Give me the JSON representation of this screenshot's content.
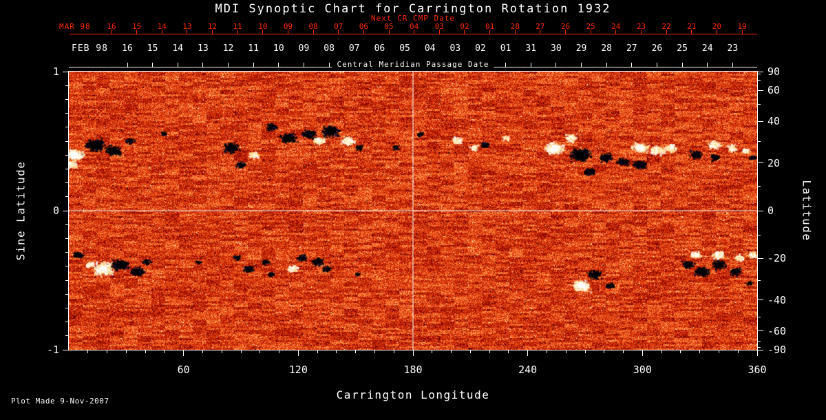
{
  "title": "MDI Synoptic Chart for Carrington Rotation 1932",
  "plot_made": "Plot Made  9-Nov-2007",
  "chart_data": {
    "type": "heatmap",
    "title": "MDI Synoptic Chart for Carrington Rotation 1932",
    "xlabel": "Carrington Longitude",
    "ylabel_left": "Sine Latitude",
    "ylabel_right": "Latitude",
    "xlim": [
      0,
      360
    ],
    "ylim_sine_latitude": [
      -1,
      1
    ],
    "x_major_ticks": [
      60,
      120,
      180,
      240,
      300,
      360
    ],
    "x_minor_step": 10,
    "left_ticks": [
      {
        "value": 1,
        "label": "1"
      },
      {
        "value": 0,
        "label": "0"
      },
      {
        "value": -1,
        "label": "-1"
      }
    ],
    "left_minor_step": 0.1,
    "right_ticks": [
      {
        "value": 90,
        "label": "90"
      },
      {
        "value": 60,
        "label": "60"
      },
      {
        "value": 40,
        "label": "40"
      },
      {
        "value": 20,
        "label": "20"
      },
      {
        "value": 0,
        "label": "0"
      },
      {
        "value": -20,
        "label": "-20"
      },
      {
        "value": -40,
        "label": "-40"
      },
      {
        "value": -60,
        "label": "-60"
      },
      {
        "value": -90,
        "label": "-90"
      }
    ],
    "right_minor_step": 10,
    "grid_lines": {
      "longitude": [
        180
      ],
      "sine_latitude": [
        0
      ]
    },
    "top_axis_red": {
      "label": "Next CR CMP Date",
      "month": "MAR 98",
      "color": "#ff2b00",
      "days": [
        "16",
        "15",
        "14",
        "13",
        "12",
        "11",
        "10",
        "09",
        "08",
        "07",
        "06",
        "05",
        "04",
        "03",
        "02",
        "01",
        "28",
        "27",
        "26",
        "25",
        "24",
        "23",
        "22",
        "21",
        "20",
        "19"
      ],
      "first_tick_frac": 0.062,
      "spacing_frac": 0.03664
    },
    "top_axis_white": {
      "label": "Central Meridian Passage Date",
      "month": "FEB 98",
      "color": "#ffffff",
      "days": [
        "16",
        "15",
        "14",
        "13",
        "12",
        "11",
        "10",
        "09",
        "08",
        "07",
        "06",
        "05",
        "04",
        "03",
        "02",
        "01",
        "31",
        "30",
        "29",
        "28",
        "27",
        "26",
        "25",
        "24",
        "23"
      ],
      "first_tick_frac": 0.085,
      "spacing_frac": 0.03664
    },
    "colormap": [
      [
        0.0,
        "#000000"
      ],
      [
        0.22,
        "#7a0000"
      ],
      [
        0.45,
        "#cc2200"
      ],
      [
        0.62,
        "#f4551e"
      ],
      [
        0.78,
        "#ff9140"
      ],
      [
        0.9,
        "#ffd27a"
      ],
      [
        1.0,
        "#ffffe8"
      ]
    ],
    "noise": {
      "base": 0.52,
      "fine_amp": 0.46,
      "block_amp": 0.13,
      "seed": 1932
    },
    "active_regions": [
      [
        3,
        0.4,
        10,
        "p"
      ],
      [
        1,
        0.33,
        7,
        "p"
      ],
      [
        14,
        0.47,
        11,
        "n"
      ],
      [
        23,
        0.43,
        9,
        "n"
      ],
      [
        32,
        0.5,
        5,
        "n"
      ],
      [
        50,
        0.55,
        4,
        "n"
      ],
      [
        85,
        0.45,
        9,
        "n"
      ],
      [
        90,
        0.33,
        6,
        "n"
      ],
      [
        97,
        0.4,
        6,
        "p"
      ],
      [
        106,
        0.6,
        7,
        "n"
      ],
      [
        115,
        0.52,
        9,
        "n"
      ],
      [
        126,
        0.55,
        8,
        "n"
      ],
      [
        131,
        0.5,
        7,
        "p"
      ],
      [
        137,
        0.57,
        10,
        "n"
      ],
      [
        146,
        0.5,
        8,
        "p"
      ],
      [
        152,
        0.45,
        5,
        "n"
      ],
      [
        171,
        0.45,
        4,
        "n"
      ],
      [
        184,
        0.55,
        4,
        "n"
      ],
      [
        203,
        0.5,
        6,
        "p"
      ],
      [
        212,
        0.45,
        5,
        "p"
      ],
      [
        218,
        0.47,
        5,
        "n"
      ],
      [
        229,
        0.52,
        4,
        "p"
      ],
      [
        254,
        0.45,
        11,
        "p"
      ],
      [
        263,
        0.52,
        7,
        "p"
      ],
      [
        268,
        0.4,
        12,
        "n"
      ],
      [
        272,
        0.28,
        7,
        "n"
      ],
      [
        281,
        0.38,
        8,
        "n"
      ],
      [
        290,
        0.35,
        7,
        "n"
      ],
      [
        299,
        0.33,
        8,
        "n"
      ],
      [
        299,
        0.45,
        9,
        "p"
      ],
      [
        308,
        0.43,
        8,
        "p"
      ],
      [
        315,
        0.45,
        7,
        "p"
      ],
      [
        328,
        0.4,
        7,
        "n"
      ],
      [
        338,
        0.38,
        6,
        "n"
      ],
      [
        338,
        0.47,
        7,
        "p"
      ],
      [
        347,
        0.45,
        6,
        "p"
      ],
      [
        354,
        0.43,
        5,
        "p"
      ],
      [
        358,
        0.38,
        4,
        "n"
      ],
      [
        5,
        -0.32,
        6,
        "n"
      ],
      [
        11,
        -0.39,
        5,
        "p"
      ],
      [
        18,
        -0.42,
        12,
        "p"
      ],
      [
        27,
        -0.39,
        10,
        "n"
      ],
      [
        36,
        -0.44,
        8,
        "n"
      ],
      [
        41,
        -0.37,
        5,
        "n"
      ],
      [
        68,
        -0.37,
        3,
        "n"
      ],
      [
        88,
        -0.34,
        5,
        "n"
      ],
      [
        94,
        -0.42,
        6,
        "n"
      ],
      [
        103,
        -0.37,
        5,
        "n"
      ],
      [
        106,
        -0.46,
        4,
        "n"
      ],
      [
        117,
        -0.42,
        6,
        "p"
      ],
      [
        122,
        -0.34,
        6,
        "n"
      ],
      [
        130,
        -0.37,
        7,
        "n"
      ],
      [
        135,
        -0.42,
        5,
        "n"
      ],
      [
        151,
        -0.46,
        3,
        "n"
      ],
      [
        268,
        -0.54,
        10,
        "p"
      ],
      [
        275,
        -0.46,
        8,
        "n"
      ],
      [
        283,
        -0.54,
        5,
        "n"
      ],
      [
        324,
        -0.39,
        7,
        "n"
      ],
      [
        331,
        -0.44,
        9,
        "n"
      ],
      [
        340,
        -0.39,
        8,
        "n"
      ],
      [
        349,
        -0.44,
        7,
        "n"
      ],
      [
        328,
        -0.32,
        6,
        "p"
      ],
      [
        340,
        -0.32,
        7,
        "p"
      ],
      [
        351,
        -0.34,
        6,
        "p"
      ],
      [
        358,
        -0.32,
        5,
        "p"
      ],
      [
        356,
        -0.52,
        4,
        "n"
      ]
    ]
  }
}
